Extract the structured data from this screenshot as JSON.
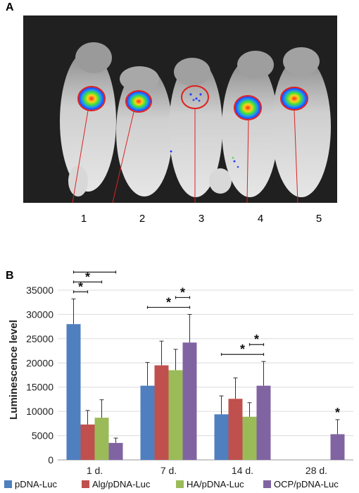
{
  "panel_a": {
    "label": "A",
    "mouse_labels": [
      "1",
      "2",
      "3",
      "4",
      "5"
    ]
  },
  "panel_b": {
    "label": "B"
  },
  "chart_data": {
    "type": "bar",
    "categories": [
      "1 d.",
      "7 d.",
      "14 d.",
      "28 d."
    ],
    "series": [
      {
        "name": "pDNA-Luc",
        "color": "#4f7fbf",
        "values": [
          28000,
          15300,
          9400,
          0
        ],
        "errors": [
          5200,
          4800,
          3800,
          0
        ]
      },
      {
        "name": "Alg/pDNA-Luc",
        "color": "#c0504d",
        "values": [
          7300,
          19500,
          12600,
          0
        ],
        "errors": [
          2900,
          5000,
          4300,
          0
        ]
      },
      {
        "name": "HA/pDNA-Luc",
        "color": "#9bbb59",
        "values": [
          8700,
          18500,
          8900,
          0
        ],
        "errors": [
          3700,
          4300,
          2900,
          0
        ]
      },
      {
        "name": "OCP/pDNA-Luc",
        "color": "#8064a2",
        "values": [
          3500,
          24200,
          15300,
          5300
        ],
        "errors": [
          1000,
          5800,
          5000,
          3000
        ]
      }
    ],
    "ylabel": "Luminescence level",
    "ylim": [
      0,
      35000
    ],
    "yticks": [
      "0",
      "5000",
      "10000",
      "15000",
      "20000",
      "25000",
      "30000",
      "35000"
    ],
    "significance_marker": "*",
    "significance": [
      {
        "category": 0,
        "from": 0,
        "to": 1
      },
      {
        "category": 0,
        "from": 0,
        "to": 2
      },
      {
        "category": 0,
        "from": 0,
        "to": 3
      },
      {
        "category": 0,
        "from": 1,
        "to": 3
      },
      {
        "category": 0,
        "from": 2,
        "to": 3
      },
      {
        "category": 1,
        "from": 0,
        "to": 3
      },
      {
        "category": 1,
        "from": 2,
        "to": 3
      },
      {
        "category": 2,
        "from": 0,
        "to": 3
      },
      {
        "category": 2,
        "from": 2,
        "to": 3
      },
      {
        "category": 3,
        "from": 3,
        "to": 3
      }
    ],
    "legend_position": "bottom"
  }
}
